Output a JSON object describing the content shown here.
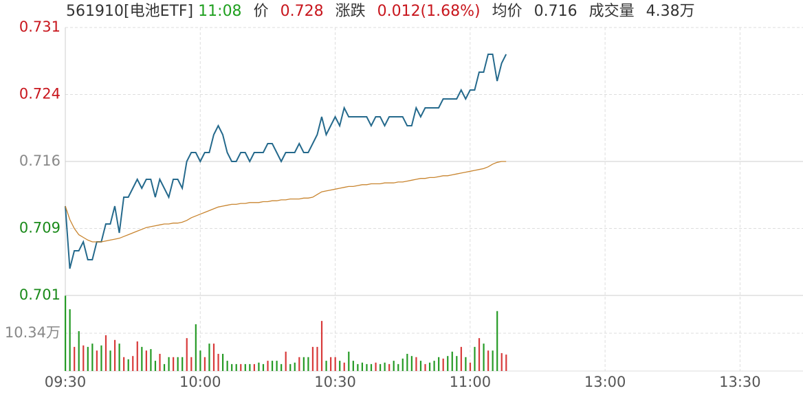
{
  "header": {
    "code": "561910[电池ETF]",
    "time": "11:08",
    "price_label": "价",
    "price": "0.728",
    "change_label": "涨跌",
    "change": "0.012(1.68%)",
    "avg_label": "均价",
    "avg": "0.716",
    "volume_label": "成交量",
    "volume": "4.38万"
  },
  "chart_data": [
    {
      "type": "line",
      "x": [
        0,
        1,
        2,
        3,
        4,
        5,
        6,
        7,
        8,
        9,
        10,
        11,
        12,
        13,
        14,
        15,
        16,
        17,
        18,
        19,
        20,
        21,
        22,
        23,
        24,
        25,
        26,
        27,
        28,
        29,
        30,
        31,
        32,
        33,
        34,
        35,
        36,
        37,
        38,
        39,
        40,
        41,
        42,
        43,
        44,
        45,
        46,
        47,
        48,
        49,
        50,
        51,
        52,
        53,
        54,
        55,
        56,
        57,
        58,
        59,
        60,
        61,
        62,
        63,
        64,
        65,
        66,
        67,
        68,
        69,
        70,
        71,
        72,
        73,
        74,
        75,
        76,
        77,
        78,
        79,
        80,
        81,
        82,
        83,
        84,
        85,
        86,
        87,
        88,
        89,
        90,
        91,
        92,
        93,
        94,
        95,
        96,
        97,
        98
      ],
      "xlim": [
        0,
        164
      ],
      "ylim": [
        0.701,
        0.731
      ],
      "xticks": [
        {
          "value": 0,
          "label": "09:30"
        },
        {
          "value": 30,
          "label": "10:00"
        },
        {
          "value": 60,
          "label": "10:30"
        },
        {
          "value": 90,
          "label": "11:00"
        },
        {
          "value": 120,
          "label": "13:00"
        },
        {
          "value": 150,
          "label": "13:30"
        }
      ],
      "yticks": [
        {
          "value": 0.701,
          "label": "0.701"
        },
        {
          "value": 0.7085,
          "label": "0.709"
        },
        {
          "value": 0.716,
          "label": "0.716"
        },
        {
          "value": 0.7235,
          "label": "0.724"
        },
        {
          "value": 0.731,
          "label": "0.731"
        }
      ],
      "grid": true,
      "series": [
        {
          "name": "价",
          "color": "#24698c",
          "values": [
            0.711,
            0.704,
            0.706,
            0.706,
            0.707,
            0.705,
            0.705,
            0.707,
            0.707,
            0.709,
            0.709,
            0.711,
            0.708,
            0.712,
            0.712,
            0.713,
            0.714,
            0.713,
            0.714,
            0.714,
            0.712,
            0.714,
            0.713,
            0.712,
            0.714,
            0.714,
            0.713,
            0.716,
            0.717,
            0.717,
            0.716,
            0.717,
            0.717,
            0.719,
            0.72,
            0.719,
            0.717,
            0.716,
            0.716,
            0.717,
            0.717,
            0.716,
            0.717,
            0.717,
            0.717,
            0.718,
            0.718,
            0.717,
            0.716,
            0.717,
            0.717,
            0.717,
            0.718,
            0.717,
            0.717,
            0.718,
            0.719,
            0.721,
            0.719,
            0.72,
            0.721,
            0.72,
            0.722,
            0.721,
            0.721,
            0.721,
            0.721,
            0.721,
            0.72,
            0.721,
            0.721,
            0.72,
            0.721,
            0.721,
            0.721,
            0.721,
            0.72,
            0.72,
            0.722,
            0.721,
            0.722,
            0.722,
            0.722,
            0.722,
            0.723,
            0.723,
            0.723,
            0.723,
            0.724,
            0.723,
            0.724,
            0.724,
            0.726,
            0.726,
            0.728,
            0.728,
            0.725,
            0.727,
            0.728
          ]
        },
        {
          "name": "均价",
          "color": "#c8842e",
          "values": [
            0.711,
            0.7095,
            0.7085,
            0.7078,
            0.7075,
            0.7072,
            0.707,
            0.707,
            0.707,
            0.7071,
            0.7072,
            0.7073,
            0.7074,
            0.7076,
            0.7078,
            0.708,
            0.7082,
            0.7084,
            0.7086,
            0.7087,
            0.7088,
            0.7089,
            0.709,
            0.709,
            0.7091,
            0.7091,
            0.7092,
            0.7094,
            0.7097,
            0.7099,
            0.7101,
            0.7103,
            0.7105,
            0.7107,
            0.7109,
            0.711,
            0.7111,
            0.7112,
            0.7112,
            0.7113,
            0.7113,
            0.7114,
            0.7114,
            0.7114,
            0.7115,
            0.7115,
            0.7116,
            0.7116,
            0.7117,
            0.7117,
            0.7118,
            0.7118,
            0.7118,
            0.7119,
            0.7119,
            0.712,
            0.7123,
            0.7126,
            0.7127,
            0.7128,
            0.7129,
            0.713,
            0.7131,
            0.7132,
            0.7132,
            0.7133,
            0.7134,
            0.7134,
            0.7135,
            0.7135,
            0.7135,
            0.7136,
            0.7136,
            0.7136,
            0.7137,
            0.7137,
            0.7138,
            0.7139,
            0.714,
            0.7141,
            0.7141,
            0.7142,
            0.7142,
            0.7143,
            0.7144,
            0.7144,
            0.7145,
            0.7146,
            0.7147,
            0.7148,
            0.7149,
            0.715,
            0.7151,
            0.7152,
            0.7154,
            0.7157,
            0.7159,
            0.716,
            0.716
          ]
        }
      ]
    },
    {
      "type": "bar",
      "x": [
        0,
        1,
        2,
        3,
        4,
        5,
        6,
        7,
        8,
        9,
        10,
        11,
        12,
        13,
        14,
        15,
        16,
        17,
        18,
        19,
        20,
        21,
        22,
        23,
        24,
        25,
        26,
        27,
        28,
        29,
        30,
        31,
        32,
        33,
        34,
        35,
        36,
        37,
        38,
        39,
        40,
        41,
        42,
        43,
        44,
        45,
        46,
        47,
        48,
        49,
        50,
        51,
        52,
        53,
        54,
        55,
        56,
        57,
        58,
        59,
        60,
        61,
        62,
        63,
        64,
        65,
        66,
        67,
        68,
        69,
        70,
        71,
        72,
        73,
        74,
        75,
        76,
        77,
        78,
        79,
        80,
        81,
        82,
        83,
        84,
        85,
        86,
        87,
        88,
        89,
        90,
        91,
        92,
        93,
        94,
        95,
        96,
        97,
        98
      ],
      "xlim": [
        0,
        164
      ],
      "ylim": [
        0,
        20.68
      ],
      "yticks": [
        {
          "value": 10.34,
          "label": "10.34万"
        }
      ],
      "up_color": "#d83a3a",
      "down_color": "#259a25",
      "values": [
        20.6,
        16.9,
        6.6,
        10.9,
        7.0,
        6.6,
        7.5,
        5.6,
        7.0,
        9.8,
        5.6,
        8.5,
        7.5,
        3.8,
        3.2,
        4.1,
        8.1,
        6.6,
        5.6,
        6.0,
        2.8,
        4.7,
        1.9,
        3.8,
        3.8,
        3.8,
        3.8,
        9.0,
        3.8,
        12.8,
        5.6,
        3.8,
        7.5,
        7.5,
        4.7,
        4.7,
        2.8,
        1.9,
        1.9,
        1.9,
        1.9,
        1.9,
        1.9,
        2.3,
        1.9,
        2.8,
        2.8,
        2.8,
        1.9,
        5.3,
        1.9,
        2.3,
        3.8,
        3.8,
        3.8,
        6.6,
        6.6,
        13.7,
        2.8,
        3.8,
        3.8,
        2.8,
        2.3,
        5.3,
        2.8,
        1.9,
        2.3,
        1.9,
        1.9,
        2.3,
        1.9,
        2.3,
        1.9,
        2.8,
        1.9,
        3.4,
        4.7,
        4.1,
        3.8,
        2.8,
        1.9,
        2.3,
        2.8,
        3.8,
        3.4,
        4.1,
        5.3,
        4.1,
        6.6,
        3.8,
        2.3,
        6.6,
        9.0,
        7.5,
        5.6,
        5.6,
        16.4,
        4.9,
        4.5
      ]
    }
  ]
}
